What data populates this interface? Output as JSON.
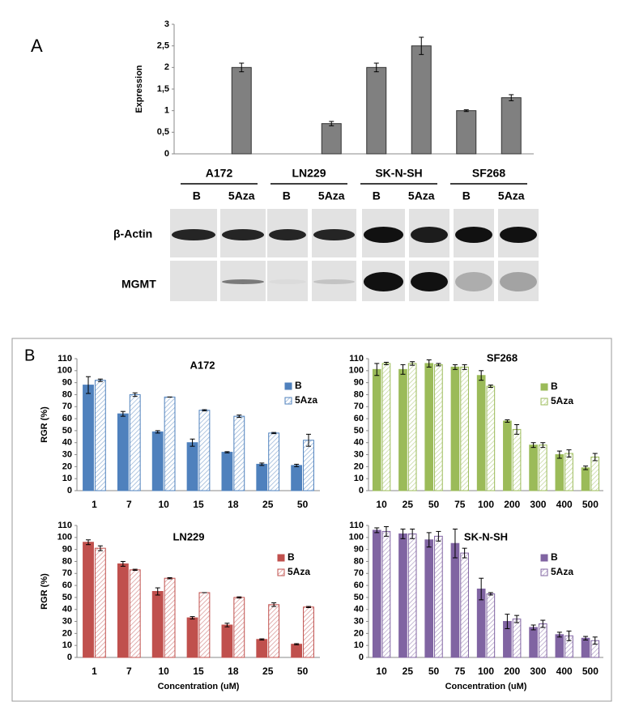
{
  "panel_labels": [
    "A",
    "B"
  ],
  "blot": {
    "rows": [
      "β-Actin",
      "MGMT"
    ]
  },
  "chart_data": [
    {
      "type": "bar",
      "y_label": "Expression",
      "groups": [
        "A172",
        "LN229",
        "SK-N-SH",
        "SF268"
      ],
      "categories": [
        "B",
        "5Aza",
        "B",
        "5Aza",
        "B",
        "5Aza",
        "B",
        "5Aza"
      ],
      "values": [
        null,
        2,
        null,
        0.7,
        2,
        2.5,
        1,
        1.3
      ],
      "errors": [
        null,
        0.1,
        null,
        0.05,
        0.1,
        0.2,
        0.02,
        0.07
      ],
      "color": "#808080",
      "ylim": [
        0,
        3
      ],
      "yticks": [
        0,
        {
          "value": 0.5,
          "label": "0,5"
        },
        1,
        {
          "value": 1.5,
          "label": "1,5"
        },
        2,
        {
          "value": 2.5,
          "label": "2,5"
        },
        3
      ]
    },
    {
      "type": "grouped_bar",
      "title": "A172",
      "y_label": "RGR (%)",
      "categories": [
        "1",
        "7",
        "10",
        "15",
        "18",
        "25",
        "50"
      ],
      "series": [
        {
          "name": "B",
          "color": "#4f81bd",
          "values": [
            88,
            64,
            49,
            40,
            32,
            22,
            21
          ],
          "errors": [
            7,
            2,
            1,
            3,
            0.5,
            1,
            1
          ]
        },
        {
          "name": "5Aza",
          "color": "#4f81bd",
          "pattern": "hatch",
          "values": [
            92,
            80,
            78,
            67,
            62,
            48,
            42
          ],
          "errors": [
            1,
            1.5,
            0,
            0.5,
            1,
            0.5,
            5
          ]
        }
      ],
      "ylim": [
        0,
        110
      ],
      "yticks": [
        0,
        10,
        20,
        30,
        40,
        50,
        60,
        70,
        80,
        90,
        100,
        110
      ]
    },
    {
      "type": "grouped_bar",
      "title": "SF268",
      "categories": [
        "10",
        "25",
        "50",
        "75",
        "100",
        "200",
        "300",
        "400",
        "500"
      ],
      "series": [
        {
          "name": "B",
          "color": "#9bbb59",
          "values": [
            101,
            101,
            106,
            103,
            96,
            58,
            38,
            30,
            19
          ],
          "errors": [
            5,
            4,
            3,
            2,
            4,
            1,
            2,
            3,
            1.5
          ]
        },
        {
          "name": "5Aza",
          "color": "#9bbb59",
          "pattern": "hatch",
          "values": [
            106,
            106,
            105,
            103,
            87,
            51,
            38,
            31,
            28
          ],
          "errors": [
            1,
            1.5,
            1,
            2,
            1,
            4,
            2,
            3,
            3
          ]
        }
      ],
      "ylim": [
        0,
        110
      ],
      "yticks": [
        0,
        10,
        20,
        30,
        40,
        50,
        60,
        70,
        80,
        90,
        100,
        110
      ]
    },
    {
      "type": "grouped_bar",
      "title": "LN229",
      "y_label": "RGR (%)",
      "x_label": "Concentration (uM)",
      "categories": [
        "1",
        "7",
        "10",
        "15",
        "18",
        "25",
        "50"
      ],
      "series": [
        {
          "name": "B",
          "color": "#c0504d",
          "values": [
            96,
            78,
            55,
            33,
            27,
            15,
            11
          ],
          "errors": [
            2,
            2,
            3,
            1,
            1.5,
            0.5,
            0.5
          ]
        },
        {
          "name": "5Aza",
          "color": "#c0504d",
          "pattern": "hatch",
          "values": [
            91,
            73,
            66,
            54,
            50,
            44,
            42
          ],
          "errors": [
            2,
            0.5,
            0.5,
            0,
            0.5,
            1.5,
            0.5
          ]
        }
      ],
      "ylim": [
        0,
        110
      ],
      "yticks": [
        0,
        10,
        20,
        30,
        40,
        50,
        60,
        70,
        80,
        90,
        100,
        110
      ]
    },
    {
      "type": "grouped_bar",
      "title": "SK-N-SH",
      "x_label": "Concentration (uM)",
      "categories": [
        "10",
        "25",
        "50",
        "75",
        "100",
        "200",
        "300",
        "400",
        "500"
      ],
      "series": [
        {
          "name": "B",
          "color": "#8064a2",
          "values": [
            106,
            103,
            98,
            95,
            57,
            30,
            25,
            19,
            16
          ],
          "errors": [
            2,
            4,
            6,
            12,
            9,
            6,
            2,
            2,
            1.5
          ]
        },
        {
          "name": "5Aza",
          "color": "#8064a2",
          "pattern": "hatch",
          "values": [
            105,
            103,
            101,
            87,
            53,
            32,
            28,
            18,
            14
          ],
          "errors": [
            4,
            4,
            4,
            4,
            1,
            3,
            3,
            4,
            3
          ]
        }
      ],
      "ylim": [
        0,
        110
      ],
      "yticks": [
        0,
        10,
        20,
        30,
        40,
        50,
        60,
        70,
        80,
        90,
        100,
        110
      ]
    }
  ]
}
